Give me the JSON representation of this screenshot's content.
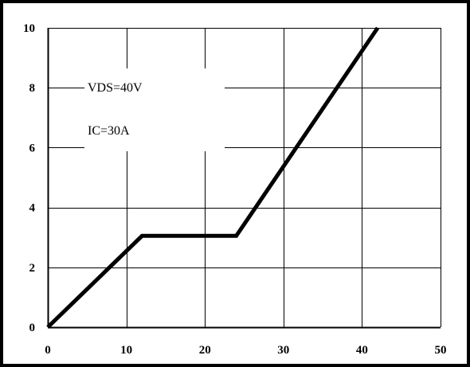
{
  "chart_data": {
    "type": "line",
    "title": "",
    "xlabel": "",
    "ylabel": "",
    "xlim": [
      0,
      50
    ],
    "ylim": [
      0,
      10
    ],
    "x_ticks": [
      "0",
      "10",
      "20",
      "30",
      "40",
      "50"
    ],
    "y_ticks": [
      "0",
      "2",
      "4",
      "6",
      "8",
      "10"
    ],
    "grid": true,
    "legend": "none",
    "annotations": [
      "VDS=40V",
      "IC=30A"
    ],
    "series": [
      {
        "color": "#000000",
        "points": [
          [
            0,
            0
          ],
          [
            12,
            3.05
          ],
          [
            24,
            3.05
          ],
          [
            42,
            10
          ]
        ]
      }
    ]
  },
  "colors": {
    "background": "#ffffff",
    "frame": "#000000",
    "grid": "#000000",
    "series": "#000000"
  }
}
